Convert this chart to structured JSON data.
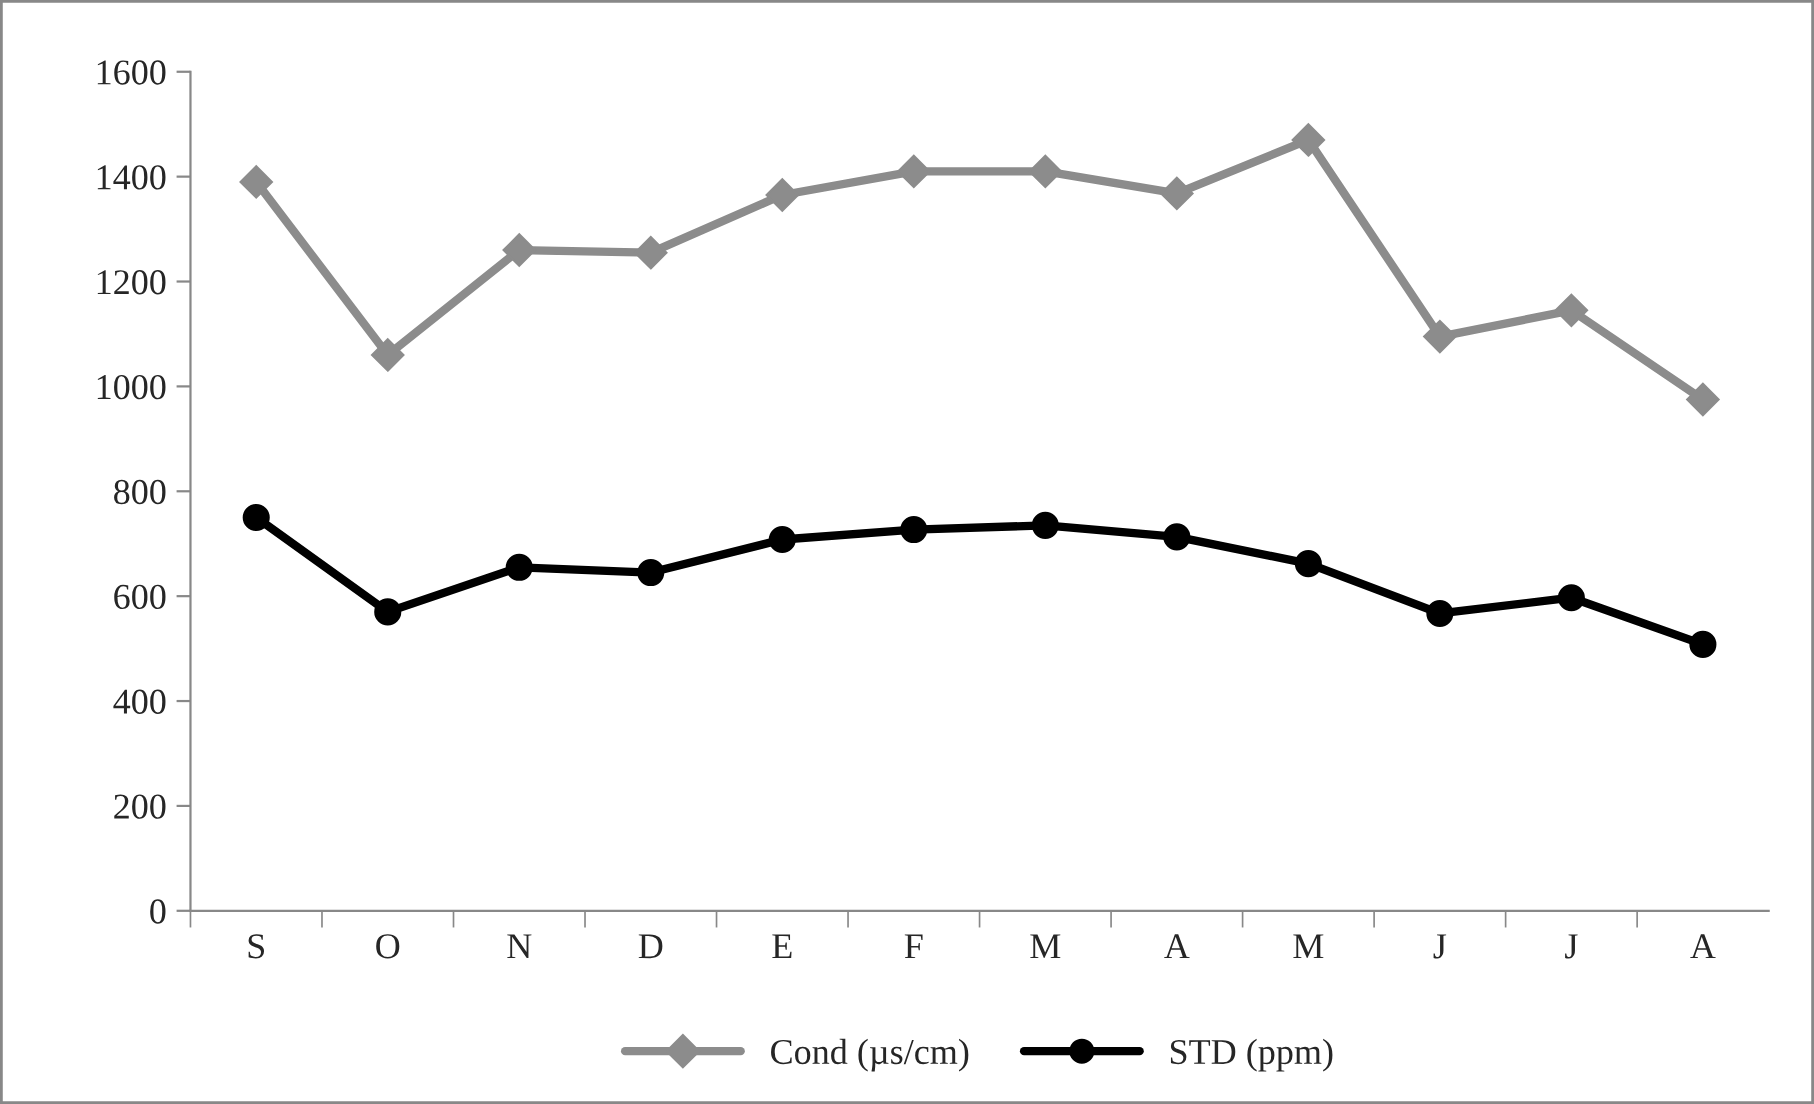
{
  "chart_data": {
    "type": "line",
    "categories": [
      "S",
      "O",
      "N",
      "D",
      "E",
      "F",
      "M",
      "A",
      "M",
      "J",
      "J",
      "A"
    ],
    "series": [
      {
        "name": "Cond (µs/cm)",
        "color": "#8c8c8c",
        "marker": "diamond",
        "values": [
          1390,
          1060,
          1260,
          1255,
          1365,
          1410,
          1410,
          1368,
          1470,
          1095,
          1145,
          975
        ]
      },
      {
        "name": "STD (ppm)",
        "color": "#000000",
        "marker": "circle",
        "values": [
          750,
          570,
          655,
          645,
          708,
          727,
          735,
          713,
          662,
          567,
          597,
          508
        ]
      }
    ],
    "ylim": [
      0,
      1600
    ],
    "yticks": [
      0,
      200,
      400,
      600,
      800,
      1000,
      1200,
      1400,
      1600
    ],
    "grid": false,
    "legend": "bottom",
    "line_style": "solid"
  }
}
